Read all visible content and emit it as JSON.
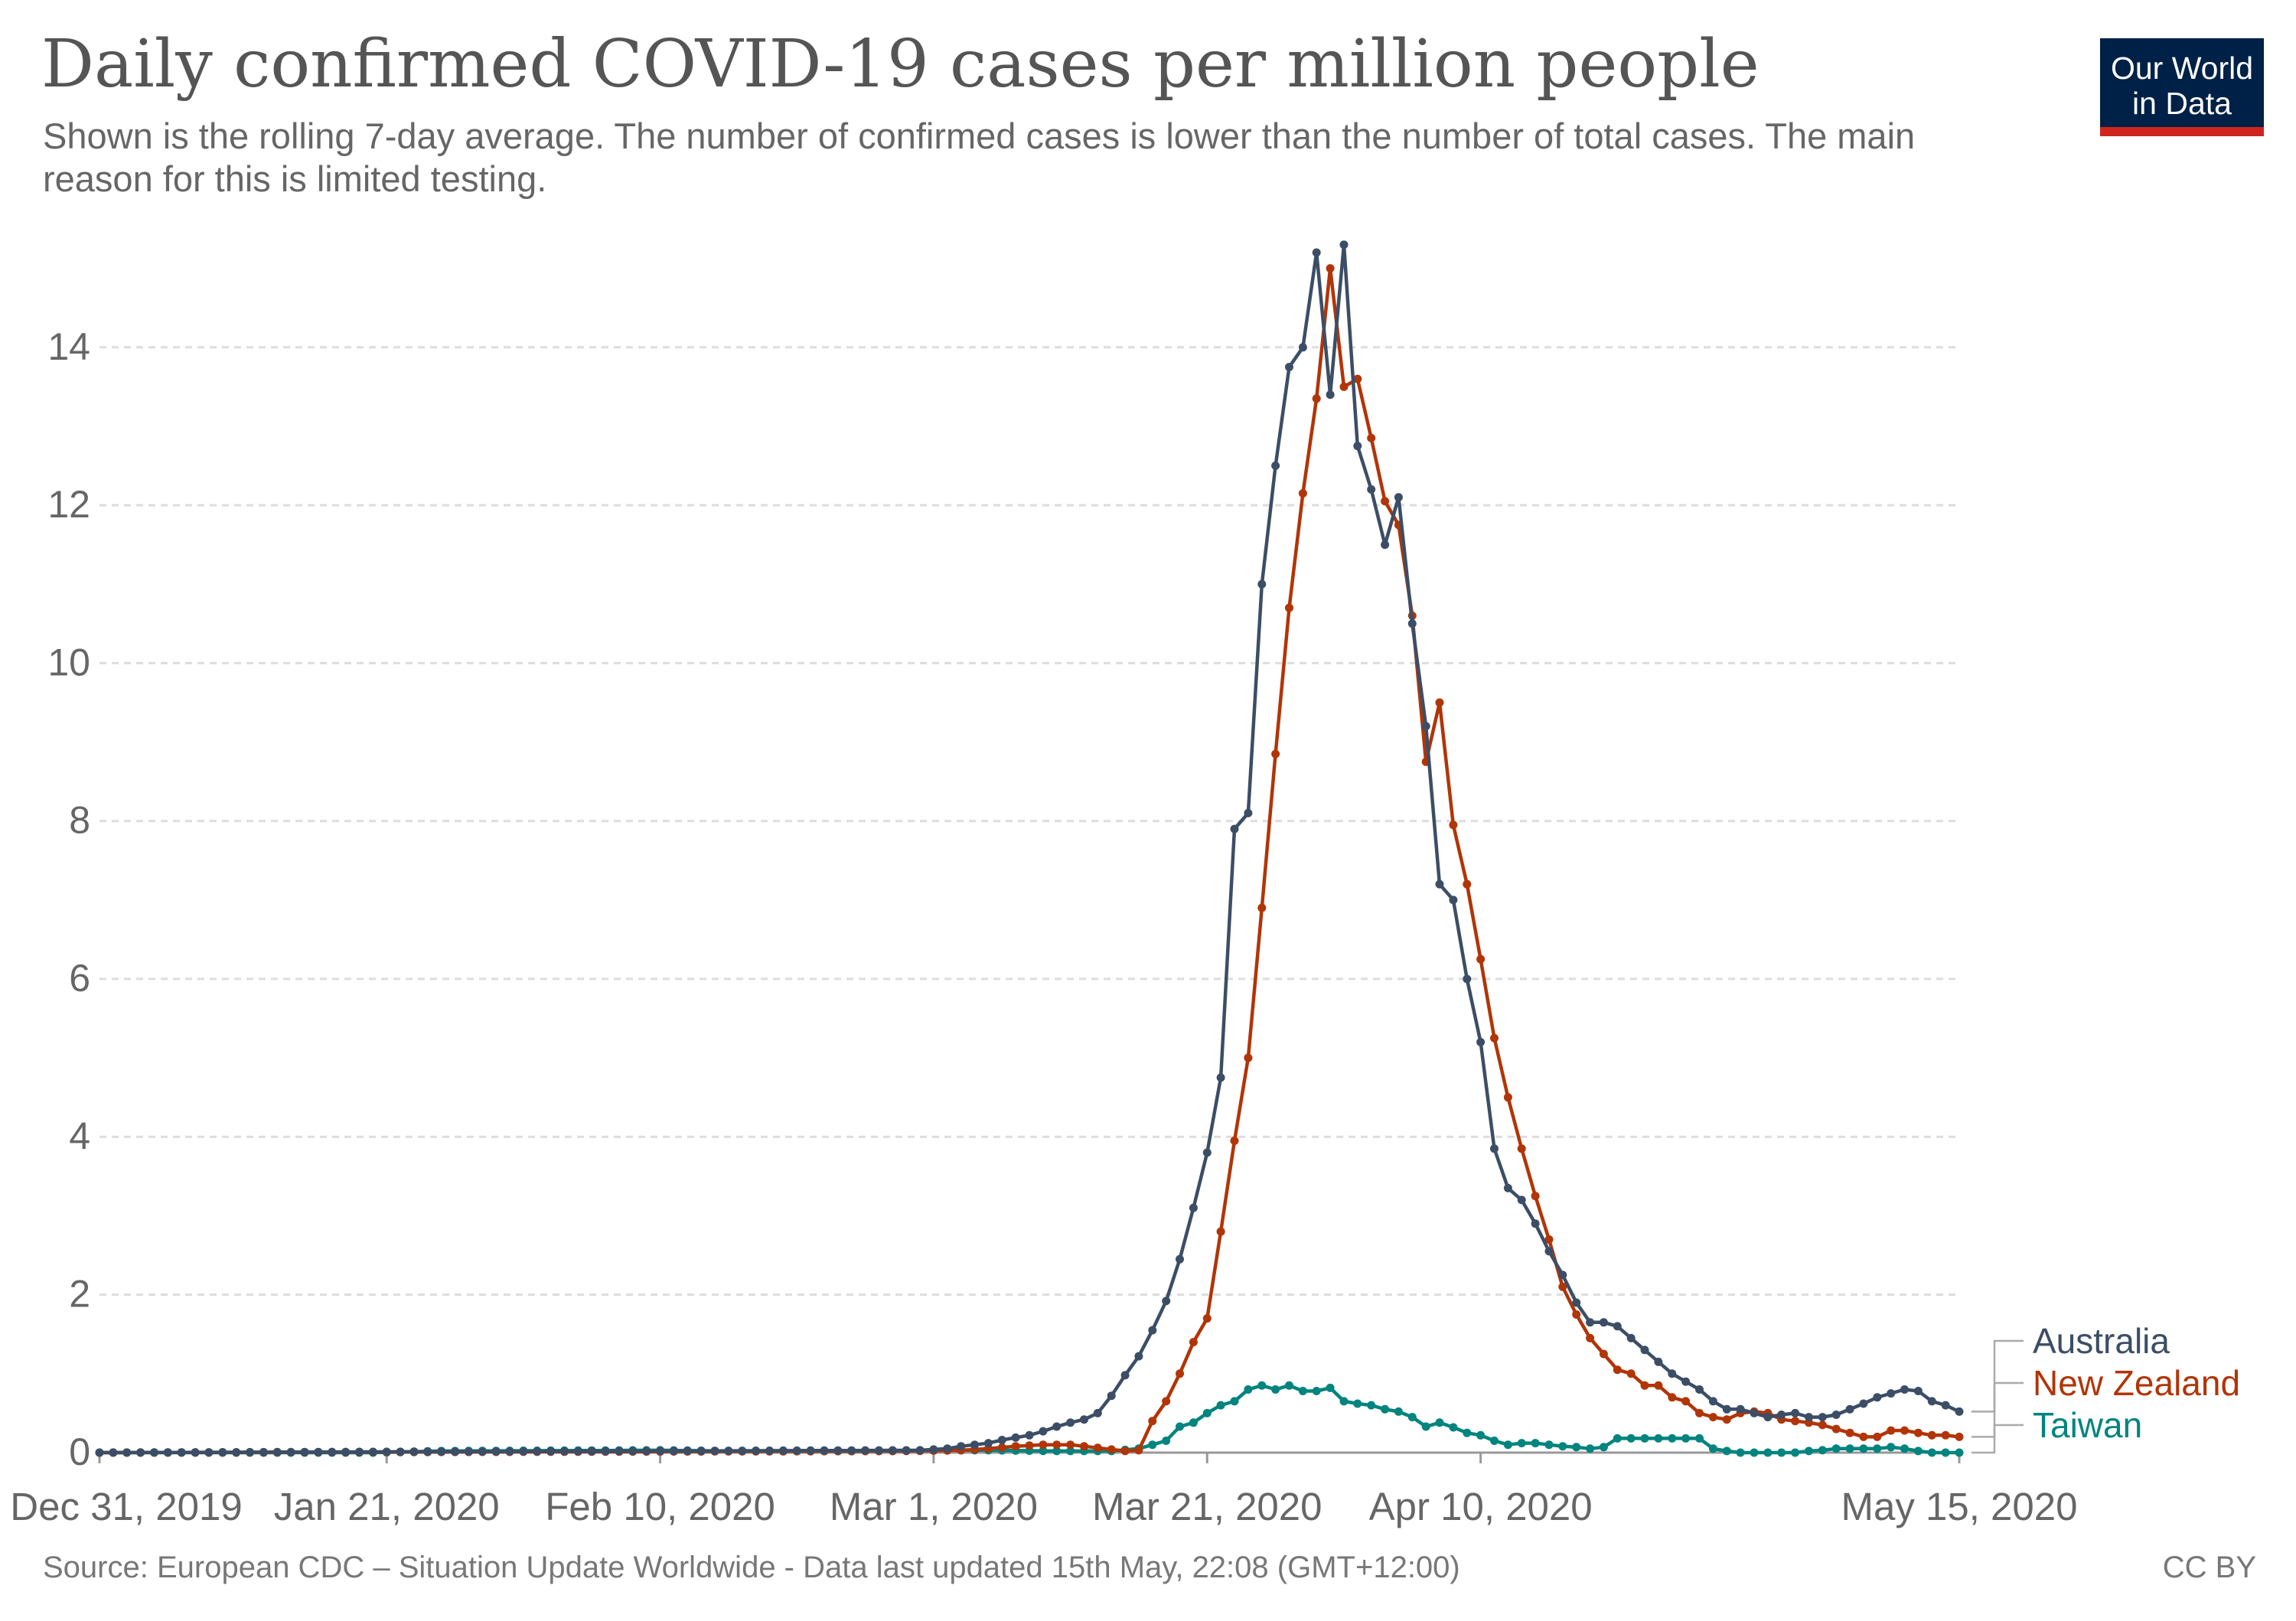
{
  "header": {
    "title": "Daily confirmed COVID-19 cases per million people",
    "subtitle": "Shown is the rolling 7-day average. The number of confirmed cases is lower than the number of total cases. The main reason for this is limited testing."
  },
  "logo": {
    "line1": "Our World",
    "line2": "in Data"
  },
  "footer": {
    "source": "Source: European CDC – Situation Update Worldwide - Data last updated 15th May, 22:08 (GMT+12:00)",
    "license": "CC BY"
  },
  "chart_data": {
    "type": "line",
    "title": "Daily confirmed COVID-19 cases per million people",
    "xlabel": "",
    "ylabel": "",
    "x_start": "2019-12-31",
    "x_end": "2020-05-15",
    "ylim": [
      0,
      15.2
    ],
    "yticks": [
      0,
      2,
      4,
      6,
      8,
      10,
      12,
      14
    ],
    "xticks": [
      {
        "date": "2019-12-31",
        "label": "Dec 31, 2019"
      },
      {
        "date": "2020-01-21",
        "label": "Jan 21, 2020"
      },
      {
        "date": "2020-02-10",
        "label": "Feb 10, 2020"
      },
      {
        "date": "2020-03-01",
        "label": "Mar 1, 2020"
      },
      {
        "date": "2020-03-21",
        "label": "Mar 21, 2020"
      },
      {
        "date": "2020-04-10",
        "label": "Apr 10, 2020"
      },
      {
        "date": "2020-05-15",
        "label": "May 15, 2020"
      }
    ],
    "grid": "horizontal-dashed",
    "legend": "right, labels at line ends",
    "series": [
      {
        "name": "Australia",
        "color": "#3c4e66",
        "points": [
          [
            "2019-12-31",
            0
          ],
          [
            "2020-02-29",
            0.03
          ],
          [
            "2020-03-01",
            0.04
          ],
          [
            "2020-03-02",
            0.05
          ],
          [
            "2020-03-03",
            0.08
          ],
          [
            "2020-03-04",
            0.1
          ],
          [
            "2020-03-05",
            0.12
          ],
          [
            "2020-03-06",
            0.16
          ],
          [
            "2020-03-07",
            0.19
          ],
          [
            "2020-03-08",
            0.22
          ],
          [
            "2020-03-09",
            0.27
          ],
          [
            "2020-03-10",
            0.33
          ],
          [
            "2020-03-11",
            0.38
          ],
          [
            "2020-03-12",
            0.42
          ],
          [
            "2020-03-13",
            0.5
          ],
          [
            "2020-03-14",
            0.72
          ],
          [
            "2020-03-15",
            0.98
          ],
          [
            "2020-03-16",
            1.22
          ],
          [
            "2020-03-17",
            1.55
          ],
          [
            "2020-03-18",
            1.92
          ],
          [
            "2020-03-19",
            2.45
          ],
          [
            "2020-03-20",
            3.1
          ],
          [
            "2020-03-21",
            3.8
          ],
          [
            "2020-03-22",
            4.75
          ],
          [
            "2020-03-23",
            7.9
          ],
          [
            "2020-03-24",
            8.1
          ],
          [
            "2020-03-25",
            11.0
          ],
          [
            "2020-03-26",
            12.5
          ],
          [
            "2020-03-27",
            13.75
          ],
          [
            "2020-03-28",
            14.0
          ],
          [
            "2020-03-29",
            15.2
          ],
          [
            "2020-03-30",
            13.4
          ],
          [
            "2020-03-31",
            15.3
          ],
          [
            "2020-04-01",
            12.75
          ],
          [
            "2020-04-02",
            12.2
          ],
          [
            "2020-04-03",
            11.5
          ],
          [
            "2020-04-04",
            12.1
          ],
          [
            "2020-04-05",
            10.5
          ],
          [
            "2020-04-06",
            9.2
          ],
          [
            "2020-04-07",
            7.2
          ],
          [
            "2020-04-08",
            7.0
          ],
          [
            "2020-04-09",
            6.0
          ],
          [
            "2020-04-10",
            5.2
          ],
          [
            "2020-04-11",
            3.85
          ],
          [
            "2020-04-12",
            3.35
          ],
          [
            "2020-04-13",
            3.2
          ],
          [
            "2020-04-14",
            2.9
          ],
          [
            "2020-04-15",
            2.55
          ],
          [
            "2020-04-16",
            2.25
          ],
          [
            "2020-04-17",
            1.9
          ],
          [
            "2020-04-18",
            1.65
          ],
          [
            "2020-04-19",
            1.65
          ],
          [
            "2020-04-20",
            1.6
          ],
          [
            "2020-04-21",
            1.45
          ],
          [
            "2020-04-22",
            1.3
          ],
          [
            "2020-04-23",
            1.15
          ],
          [
            "2020-04-24",
            1.0
          ],
          [
            "2020-04-25",
            0.9
          ],
          [
            "2020-04-26",
            0.8
          ],
          [
            "2020-04-27",
            0.65
          ],
          [
            "2020-04-28",
            0.55
          ],
          [
            "2020-04-29",
            0.55
          ],
          [
            "2020-04-30",
            0.5
          ],
          [
            "2020-05-01",
            0.45
          ],
          [
            "2020-05-02",
            0.48
          ],
          [
            "2020-05-03",
            0.5
          ],
          [
            "2020-05-04",
            0.45
          ],
          [
            "2020-05-05",
            0.45
          ],
          [
            "2020-05-06",
            0.48
          ],
          [
            "2020-05-07",
            0.55
          ],
          [
            "2020-05-08",
            0.62
          ],
          [
            "2020-05-09",
            0.7
          ],
          [
            "2020-05-10",
            0.75
          ],
          [
            "2020-05-11",
            0.8
          ],
          [
            "2020-05-12",
            0.78
          ],
          [
            "2020-05-13",
            0.65
          ],
          [
            "2020-05-14",
            0.6
          ],
          [
            "2020-05-15",
            0.52
          ]
        ]
      },
      {
        "name": "New Zealand",
        "color": "#b13507",
        "points": [
          [
            "2019-12-31",
            0
          ],
          [
            "2020-02-28",
            0.02
          ],
          [
            "2020-03-03",
            0.03
          ],
          [
            "2020-03-05",
            0.05
          ],
          [
            "2020-03-07",
            0.08
          ],
          [
            "2020-03-09",
            0.1
          ],
          [
            "2020-03-11",
            0.1
          ],
          [
            "2020-03-12",
            0.08
          ],
          [
            "2020-03-13",
            0.06
          ],
          [
            "2020-03-14",
            0.04
          ],
          [
            "2020-03-15",
            0.02
          ],
          [
            "2020-03-16",
            0.03
          ],
          [
            "2020-03-17",
            0.4
          ],
          [
            "2020-03-18",
            0.65
          ],
          [
            "2020-03-19",
            1.0
          ],
          [
            "2020-03-20",
            1.4
          ],
          [
            "2020-03-21",
            1.7
          ],
          [
            "2020-03-22",
            2.8
          ],
          [
            "2020-03-23",
            3.95
          ],
          [
            "2020-03-24",
            5.0
          ],
          [
            "2020-03-25",
            6.9
          ],
          [
            "2020-03-26",
            8.85
          ],
          [
            "2020-03-27",
            10.7
          ],
          [
            "2020-03-28",
            12.15
          ],
          [
            "2020-03-29",
            13.35
          ],
          [
            "2020-03-30",
            15.0
          ],
          [
            "2020-03-31",
            13.5
          ],
          [
            "2020-04-01",
            13.6
          ],
          [
            "2020-04-02",
            12.85
          ],
          [
            "2020-04-03",
            12.05
          ],
          [
            "2020-04-04",
            11.75
          ],
          [
            "2020-04-05",
            10.6
          ],
          [
            "2020-04-06",
            8.75
          ],
          [
            "2020-04-07",
            9.5
          ],
          [
            "2020-04-08",
            7.95
          ],
          [
            "2020-04-09",
            7.2
          ],
          [
            "2020-04-10",
            6.25
          ],
          [
            "2020-04-11",
            5.25
          ],
          [
            "2020-04-12",
            4.5
          ],
          [
            "2020-04-13",
            3.85
          ],
          [
            "2020-04-14",
            3.25
          ],
          [
            "2020-04-15",
            2.7
          ],
          [
            "2020-04-16",
            2.1
          ],
          [
            "2020-04-17",
            1.75
          ],
          [
            "2020-04-18",
            1.45
          ],
          [
            "2020-04-19",
            1.25
          ],
          [
            "2020-04-20",
            1.05
          ],
          [
            "2020-04-21",
            1.0
          ],
          [
            "2020-04-22",
            0.85
          ],
          [
            "2020-04-23",
            0.85
          ],
          [
            "2020-04-24",
            0.7
          ],
          [
            "2020-04-25",
            0.65
          ],
          [
            "2020-04-26",
            0.5
          ],
          [
            "2020-04-27",
            0.45
          ],
          [
            "2020-04-28",
            0.42
          ],
          [
            "2020-04-29",
            0.5
          ],
          [
            "2020-04-30",
            0.52
          ],
          [
            "2020-05-01",
            0.5
          ],
          [
            "2020-05-02",
            0.42
          ],
          [
            "2020-05-03",
            0.4
          ],
          [
            "2020-05-04",
            0.38
          ],
          [
            "2020-05-05",
            0.35
          ],
          [
            "2020-05-06",
            0.3
          ],
          [
            "2020-05-07",
            0.25
          ],
          [
            "2020-05-08",
            0.2
          ],
          [
            "2020-05-09",
            0.2
          ],
          [
            "2020-05-10",
            0.28
          ],
          [
            "2020-05-11",
            0.28
          ],
          [
            "2020-05-12",
            0.25
          ],
          [
            "2020-05-13",
            0.22
          ],
          [
            "2020-05-14",
            0.22
          ],
          [
            "2020-05-15",
            0.2
          ]
        ]
      },
      {
        "name": "Taiwan",
        "color": "#00847e",
        "points": [
          [
            "2019-12-31",
            0
          ],
          [
            "2020-01-20",
            0.0
          ],
          [
            "2020-01-25",
            0.02
          ],
          [
            "2020-02-10",
            0.03
          ],
          [
            "2020-02-15",
            0.02
          ],
          [
            "2020-02-20",
            0.02
          ],
          [
            "2020-02-25",
            0.02
          ],
          [
            "2020-03-01",
            0.03
          ],
          [
            "2020-03-05",
            0.03
          ],
          [
            "2020-03-10",
            0.02
          ],
          [
            "2020-03-14",
            0.02
          ],
          [
            "2020-03-16",
            0.05
          ],
          [
            "2020-03-17",
            0.1
          ],
          [
            "2020-03-18",
            0.15
          ],
          [
            "2020-03-19",
            0.33
          ],
          [
            "2020-03-20",
            0.38
          ],
          [
            "2020-03-21",
            0.5
          ],
          [
            "2020-03-22",
            0.6
          ],
          [
            "2020-03-23",
            0.65
          ],
          [
            "2020-03-24",
            0.8
          ],
          [
            "2020-03-25",
            0.85
          ],
          [
            "2020-03-26",
            0.8
          ],
          [
            "2020-03-27",
            0.85
          ],
          [
            "2020-03-28",
            0.78
          ],
          [
            "2020-03-29",
            0.78
          ],
          [
            "2020-03-30",
            0.82
          ],
          [
            "2020-03-31",
            0.65
          ],
          [
            "2020-04-01",
            0.62
          ],
          [
            "2020-04-02",
            0.6
          ],
          [
            "2020-04-03",
            0.55
          ],
          [
            "2020-04-04",
            0.52
          ],
          [
            "2020-04-05",
            0.45
          ],
          [
            "2020-04-06",
            0.33
          ],
          [
            "2020-04-07",
            0.38
          ],
          [
            "2020-04-08",
            0.32
          ],
          [
            "2020-04-09",
            0.25
          ],
          [
            "2020-04-10",
            0.22
          ],
          [
            "2020-04-11",
            0.15
          ],
          [
            "2020-04-12",
            0.1
          ],
          [
            "2020-04-13",
            0.12
          ],
          [
            "2020-04-14",
            0.12
          ],
          [
            "2020-04-15",
            0.1
          ],
          [
            "2020-04-16",
            0.08
          ],
          [
            "2020-04-17",
            0.07
          ],
          [
            "2020-04-18",
            0.05
          ],
          [
            "2020-04-19",
            0.07
          ],
          [
            "2020-04-20",
            0.18
          ],
          [
            "2020-04-21",
            0.18
          ],
          [
            "2020-04-22",
            0.18
          ],
          [
            "2020-04-23",
            0.18
          ],
          [
            "2020-04-24",
            0.18
          ],
          [
            "2020-04-25",
            0.18
          ],
          [
            "2020-04-26",
            0.18
          ],
          [
            "2020-04-27",
            0.05
          ],
          [
            "2020-04-28",
            0.02
          ],
          [
            "2020-04-29",
            0.0
          ],
          [
            "2020-04-30",
            0.0
          ],
          [
            "2020-05-01",
            0.0
          ],
          [
            "2020-05-02",
            0.0
          ],
          [
            "2020-05-03",
            0.0
          ],
          [
            "2020-05-04",
            0.02
          ],
          [
            "2020-05-05",
            0.03
          ],
          [
            "2020-05-06",
            0.05
          ],
          [
            "2020-05-07",
            0.05
          ],
          [
            "2020-05-08",
            0.05
          ],
          [
            "2020-05-09",
            0.05
          ],
          [
            "2020-05-10",
            0.07
          ],
          [
            "2020-05-11",
            0.05
          ],
          [
            "2020-05-12",
            0.02
          ],
          [
            "2020-05-13",
            0.0
          ],
          [
            "2020-05-14",
            0.0
          ],
          [
            "2020-05-15",
            0.0
          ]
        ]
      }
    ]
  }
}
